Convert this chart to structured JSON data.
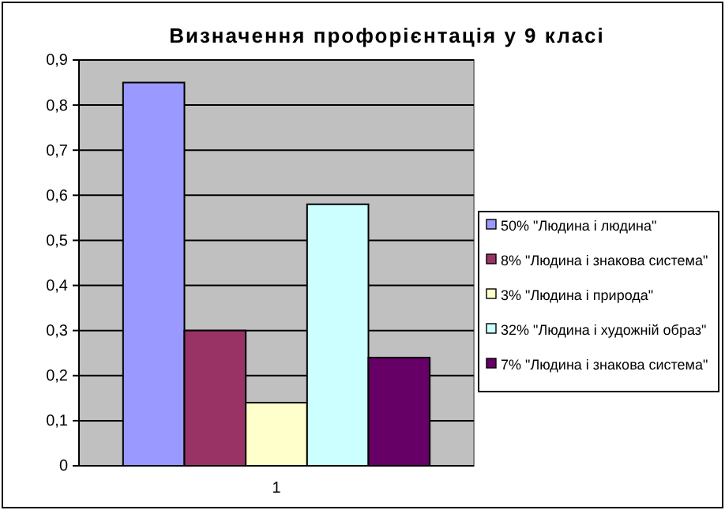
{
  "chart_data": {
    "type": "bar",
    "title": "Визначення профорієнтація у 9 класі",
    "categories": [
      "1"
    ],
    "series": [
      {
        "name": "50% \"Людина і людина\"",
        "color": "#9999ff",
        "values": [
          0.85
        ]
      },
      {
        "name": "8% \"Людина і знакова система\"",
        "color": "#993366",
        "values": [
          0.3
        ]
      },
      {
        "name": "3% \"Людина і природа\"",
        "color": "#ffffcc",
        "values": [
          0.14
        ]
      },
      {
        "name": "32% \"Людина і художній образ\"",
        "color": "#ccffff",
        "values": [
          0.58
        ]
      },
      {
        "name": "7% \"Людина і знакова система\"",
        "color": "#660066",
        "values": [
          0.24
        ]
      }
    ],
    "ylim": [
      0,
      0.9
    ],
    "yticks": [
      {
        "value": 0,
        "label": "0"
      },
      {
        "value": 0.1,
        "label": "0,1"
      },
      {
        "value": 0.2,
        "label": "0,2"
      },
      {
        "value": 0.3,
        "label": "0,3"
      },
      {
        "value": 0.4,
        "label": "0,4"
      },
      {
        "value": 0.5,
        "label": "0,5"
      },
      {
        "value": 0.6,
        "label": "0,6"
      },
      {
        "value": 0.7,
        "label": "0,7"
      },
      {
        "value": 0.8,
        "label": "0,8"
      },
      {
        "value": 0.9,
        "label": "0,9"
      }
    ],
    "grid": "y",
    "legend": "right"
  }
}
